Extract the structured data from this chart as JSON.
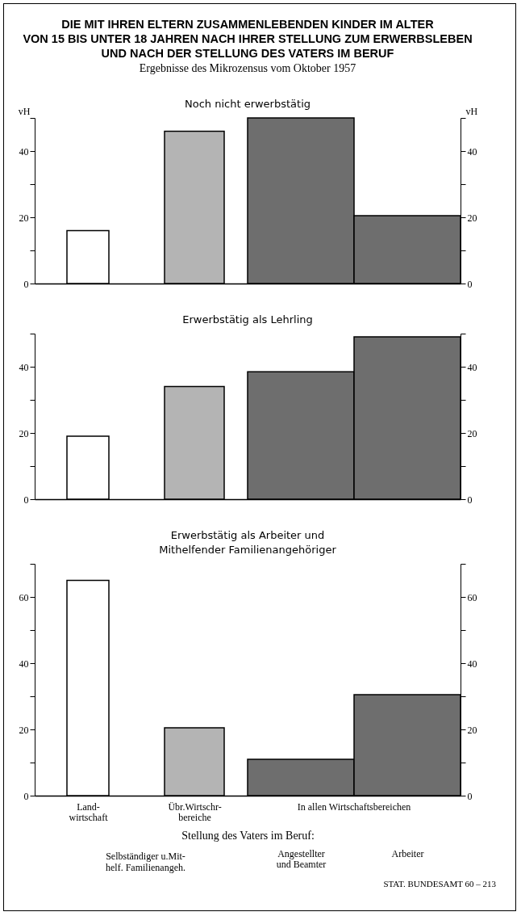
{
  "chart_data": [
    {
      "type": "bar",
      "title": "DIE MIT IHREN ELTERN ZUSAMMENLEBENDEN KINDER IM ALTER\nVON 15 BIS UNTER 18 JAHREN NACH IHRER STELLUNG ZUM ERWERBSLEBEN\nUND NACH DER STELLUNG DES VATERS IM BERUF",
      "subtitle": "Ergebnisse des Mikrozensus vom Oktober 1957",
      "annotations": [
        "Noch nicht erwerbstätig"
      ],
      "categories": [
        null,
        null,
        null,
        null
      ],
      "values": [
        16,
        46,
        50,
        20.5
      ],
      "colors": [
        "#ffffff",
        "#b4b4b4",
        "#6e6e6e",
        "#6e6e6e"
      ],
      "ylabel": "vH",
      "y2label": "vH",
      "ylim": [
        0,
        50
      ],
      "yticks": [
        0,
        {
          "value": 10,
          "label": null
        },
        20,
        {
          "value": 30,
          "label": null
        },
        40,
        {
          "value": 50,
          "label": null
        }
      ],
      "y2lim": [
        0,
        50
      ],
      "y2ticks": [
        0,
        {
          "value": 10,
          "label": null
        },
        20,
        {
          "value": 30,
          "label": null
        },
        40,
        {
          "value": 50,
          "label": null
        }
      ],
      "tick_labels": "y"
    },
    {
      "type": "bar",
      "title": "Erwerbstätig als Lehrling",
      "categories": [
        null,
        null,
        null,
        null
      ],
      "values": [
        19,
        34,
        38.5,
        49
      ],
      "colors": [
        "#ffffff",
        "#b4b4b4",
        "#6e6e6e",
        "#6e6e6e"
      ],
      "ylim": [
        0,
        50
      ],
      "yticks": [
        0,
        {
          "value": 10,
          "label": null
        },
        20,
        {
          "value": 30,
          "label": null
        },
        40,
        {
          "value": 50,
          "label": null
        }
      ],
      "y2lim": [
        0,
        50
      ],
      "y2ticks": [
        0,
        {
          "value": 10,
          "label": null
        },
        20,
        {
          "value": 30,
          "label": null
        },
        40,
        {
          "value": 50,
          "label": null
        }
      ],
      "tick_labels": "y"
    },
    {
      "type": "bar",
      "title": "Erwerbstätig als Arbeiter und\nMithelfender Familienangehöriger",
      "categories": [
        "Land-\nwirtschaft",
        "Übr.Wirtschr-\nbereiche",
        "Angestellter\nund Beamter",
        "Arbeiter"
      ],
      "values": [
        65,
        20.5,
        11,
        30.5
      ],
      "colors": [
        "#ffffff",
        "#b4b4b4",
        "#6e6e6e",
        "#6e6e6e"
      ],
      "xlabel": "Stellung des Vaters im Beruf:",
      "annotations": [
        "In allen Wirtschaftsbereichen",
        "Selbständiger u.Mit-\nhelf. Familienangeh.",
        "STAT. BUNDESAMT 60 – 213"
      ],
      "ylim": [
        0,
        70
      ],
      "yticks": [
        0,
        {
          "value": 10,
          "label": null
        },
        20,
        {
          "value": 30,
          "label": null
        },
        40,
        {
          "value": 50,
          "label": null
        },
        60,
        {
          "value": 70,
          "label": null
        }
      ],
      "y2lim": [
        0,
        70
      ],
      "y2ticks": [
        0,
        {
          "value": 10,
          "label": null
        },
        20,
        {
          "value": 30,
          "label": null
        },
        40,
        {
          "value": 50,
          "label": null
        },
        60,
        {
          "value": 70,
          "label": null
        }
      ]
    }
  ]
}
